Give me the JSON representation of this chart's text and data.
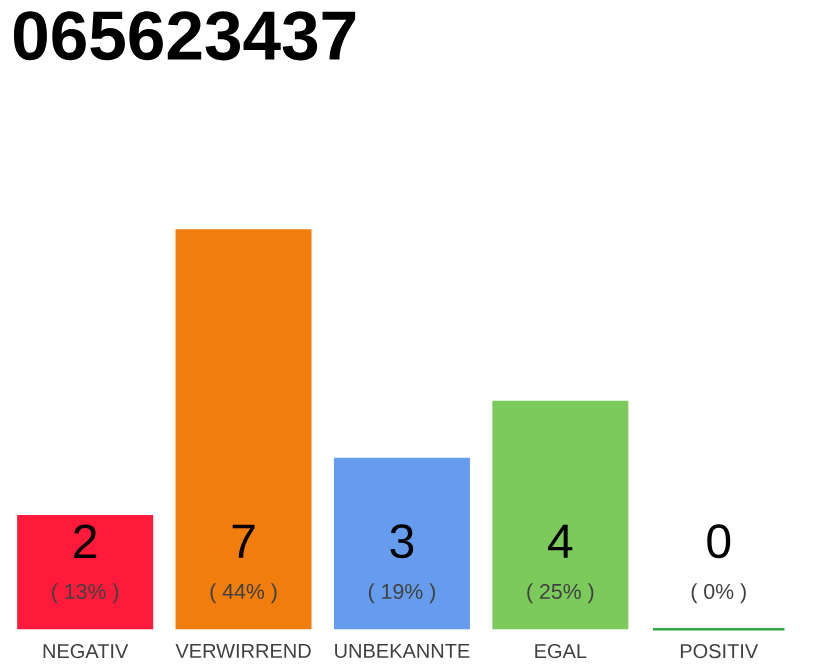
{
  "chart_data": {
    "type": "bar",
    "title": "065623437",
    "categories": [
      "NEGATIV",
      "VERWIRREND",
      "UNBEKANNTE",
      "EGAL",
      "POSITIV"
    ],
    "values": [
      2,
      7,
      3,
      4,
      0
    ],
    "colors": [
      "#ff1a3c",
      "#f07d0c",
      "#669cee",
      "#7cc95c",
      "#30a64a"
    ],
    "ylim": [
      0,
      7
    ],
    "tick_labels": "x",
    "data_labels": true,
    "annotations": [
      "( 13% )",
      "( 44% )",
      "( 19% )",
      "( 25% )",
      "( 0% )"
    ]
  }
}
